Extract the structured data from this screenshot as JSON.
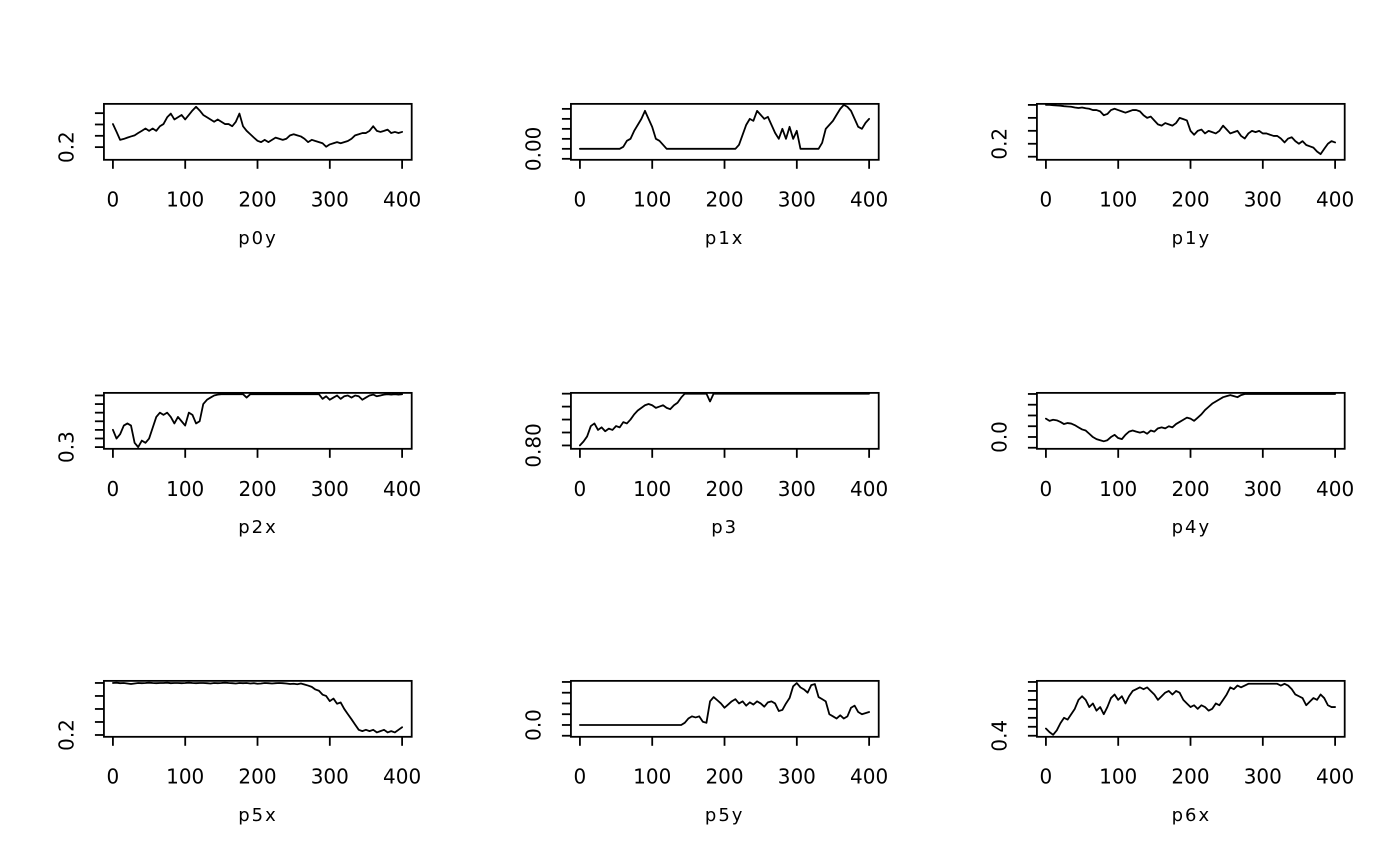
{
  "page": {
    "background": "#ffffff",
    "foreground": "#000000"
  },
  "layout": {
    "rows": 3,
    "cols": 3,
    "grid": false,
    "legend": "none"
  },
  "chart_data": [
    {
      "type": "line",
      "title": "p0y",
      "line_color": "#000000",
      "x_start": 0,
      "x_step": 5,
      "xlim": [
        0,
        400
      ],
      "x_ticks": [
        0,
        100,
        200,
        300,
        400
      ],
      "y_ticks": [
        0.2,
        0.25,
        0.3,
        0.35
      ],
      "y_axis_label": "0.2",
      "y_label_tick_index": 0,
      "ylim": [
        0.144,
        0.391
      ],
      "values": [
        0.302,
        0.268,
        0.232,
        0.236,
        0.242,
        0.247,
        0.252,
        0.262,
        0.272,
        0.282,
        0.272,
        0.282,
        0.272,
        0.292,
        0.302,
        0.332,
        0.348,
        0.322,
        0.332,
        0.342,
        0.322,
        0.342,
        0.362,
        0.378,
        0.362,
        0.342,
        0.332,
        0.322,
        0.312,
        0.322,
        0.312,
        0.302,
        0.302,
        0.292,
        0.312,
        0.348,
        0.292,
        0.272,
        0.257,
        0.242,
        0.228,
        0.222,
        0.232,
        0.222,
        0.232,
        0.242,
        0.237,
        0.232,
        0.237,
        0.252,
        0.257,
        0.252,
        0.247,
        0.237,
        0.222,
        0.232,
        0.227,
        0.222,
        0.217,
        0.202,
        0.212,
        0.217,
        0.222,
        0.217,
        0.222,
        0.227,
        0.237,
        0.252,
        0.257,
        0.262,
        0.262,
        0.272,
        0.292,
        0.272,
        0.267,
        0.272,
        0.277,
        0.262,
        0.267,
        0.262,
        0.267
      ]
    },
    {
      "type": "line",
      "title": "p1x",
      "line_color": "#000000",
      "x_start": 0,
      "x_step": 5,
      "xlim": [
        0,
        400
      ],
      "x_ticks": [
        0,
        100,
        200,
        300,
        400
      ],
      "y_ticks": [
        -0.05,
        0.0,
        0.05,
        0.1,
        0.15,
        0.2
      ],
      "y_axis_label": "0.00",
      "y_label_tick_index": 1,
      "ylim": [
        -0.055,
        0.225
      ],
      "values": [
        0,
        0,
        0,
        0,
        0,
        0,
        0,
        0,
        0,
        0,
        0,
        0,
        0.01,
        0.04,
        0.05,
        0.09,
        0.12,
        0.15,
        0.19,
        0.15,
        0.11,
        0.05,
        0.04,
        0.02,
        0,
        0,
        0,
        0,
        0,
        0,
        0,
        0,
        0,
        0,
        0,
        0,
        0,
        0,
        0,
        0,
        0,
        0,
        0,
        0,
        0.02,
        0.07,
        0.12,
        0.15,
        0.14,
        0.19,
        0.17,
        0.15,
        0.16,
        0.12,
        0.08,
        0.05,
        0.1,
        0.05,
        0.11,
        0.05,
        0.09,
        0,
        0,
        0,
        0,
        0,
        0,
        0.03,
        0.1,
        0.12,
        0.14,
        0.17,
        0.2,
        0.22,
        0.21,
        0.19,
        0.15,
        0.11,
        0.1,
        0.13,
        0.15
      ]
    },
    {
      "type": "line",
      "title": "p1y",
      "line_color": "#000000",
      "x_start": 0,
      "x_step": 5,
      "xlim": [
        0,
        400
      ],
      "x_ticks": [
        0,
        100,
        200,
        300,
        400
      ],
      "y_ticks": [
        0.15,
        0.2,
        0.25,
        0.3,
        0.35
      ],
      "y_axis_label": "0.2",
      "y_label_tick_index": 1,
      "ylim": [
        0.138,
        0.354
      ],
      "values": [
        0.35,
        0.35,
        0.349,
        0.348,
        0.347,
        0.345,
        0.344,
        0.343,
        0.34,
        0.338,
        0.34,
        0.337,
        0.335,
        0.33,
        0.33,
        0.325,
        0.31,
        0.315,
        0.33,
        0.335,
        0.33,
        0.325,
        0.32,
        0.325,
        0.33,
        0.33,
        0.325,
        0.31,
        0.3,
        0.305,
        0.29,
        0.275,
        0.27,
        0.28,
        0.275,
        0.27,
        0.28,
        0.3,
        0.295,
        0.29,
        0.25,
        0.235,
        0.25,
        0.255,
        0.24,
        0.25,
        0.245,
        0.24,
        0.25,
        0.27,
        0.255,
        0.24,
        0.245,
        0.25,
        0.23,
        0.22,
        0.24,
        0.25,
        0.245,
        0.25,
        0.24,
        0.24,
        0.235,
        0.23,
        0.23,
        0.22,
        0.205,
        0.22,
        0.225,
        0.21,
        0.2,
        0.21,
        0.195,
        0.19,
        0.185,
        0.17,
        0.16,
        0.18,
        0.2,
        0.21,
        0.205
      ]
    },
    {
      "type": "line",
      "title": "p2x",
      "line_color": "#000000",
      "x_start": 0,
      "x_step": 5,
      "xlim": [
        0,
        400
      ],
      "x_ticks": [
        0,
        100,
        200,
        300,
        400
      ],
      "y_ticks": [
        0.3,
        0.32,
        0.34,
        0.36,
        0.38,
        0.4,
        0.42
      ],
      "y_axis_label": "0.3",
      "y_label_tick_index": 0,
      "ylim": [
        0.296,
        0.426
      ],
      "values": [
        0.34,
        0.32,
        0.33,
        0.35,
        0.355,
        0.35,
        0.31,
        0.3,
        0.315,
        0.31,
        0.32,
        0.345,
        0.37,
        0.38,
        0.375,
        0.38,
        0.37,
        0.355,
        0.37,
        0.36,
        0.35,
        0.38,
        0.375,
        0.355,
        0.36,
        0.4,
        0.41,
        0.415,
        0.42,
        0.422,
        0.423,
        0.423,
        0.423,
        0.423,
        0.423,
        0.423,
        0.423,
        0.415,
        0.423,
        0.423,
        0.423,
        0.423,
        0.423,
        0.423,
        0.423,
        0.423,
        0.423,
        0.423,
        0.423,
        0.423,
        0.423,
        0.423,
        0.423,
        0.423,
        0.423,
        0.423,
        0.423,
        0.423,
        0.412,
        0.418,
        0.41,
        0.415,
        0.42,
        0.412,
        0.418,
        0.42,
        0.415,
        0.42,
        0.418,
        0.41,
        0.415,
        0.42,
        0.422,
        0.418,
        0.42,
        0.422,
        0.423,
        0.422,
        0.423,
        0.422,
        0.423
      ]
    },
    {
      "type": "line",
      "title": "p3",
      "line_color": "#000000",
      "x_start": 0,
      "x_step": 5,
      "xlim": [
        0,
        400
      ],
      "x_ticks": [
        0,
        100,
        200,
        300,
        400
      ],
      "y_ticks": [
        0.8,
        0.85,
        0.9,
        0.95,
        1.0
      ],
      "y_axis_label": "0.80",
      "y_label_tick_index": 0,
      "ylim": [
        0.787,
        1.003
      ],
      "values": [
        0.8,
        0.815,
        0.835,
        0.875,
        0.885,
        0.86,
        0.87,
        0.855,
        0.865,
        0.86,
        0.875,
        0.87,
        0.89,
        0.885,
        0.9,
        0.92,
        0.935,
        0.945,
        0.955,
        0.96,
        0.955,
        0.945,
        0.95,
        0.955,
        0.945,
        0.94,
        0.955,
        0.965,
        0.985,
        1.0,
        1.0,
        1.0,
        1.0,
        1.0,
        1.0,
        1.0,
        0.97,
        1.0,
        1.0,
        1.0,
        1.0,
        1.0,
        1.0,
        1.0,
        1.0,
        1.0,
        1.0,
        1.0,
        1.0,
        1.0,
        1.0,
        1.0,
        1.0,
        1.0,
        1.0,
        1.0,
        1.0,
        1.0,
        1.0,
        1.0,
        1.0,
        1.0,
        1.0,
        1.0,
        1.0,
        1.0,
        1.0,
        1.0,
        1.0,
        1.0,
        1.0,
        1.0,
        1.0,
        1.0,
        1.0,
        1.0,
        1.0,
        1.0,
        1.0,
        1.0,
        1.0
      ]
    },
    {
      "type": "line",
      "title": "p4y",
      "line_color": "#000000",
      "x_start": 0,
      "x_step": 5,
      "xlim": [
        0,
        400
      ],
      "x_ticks": [
        0,
        100,
        200,
        300,
        400
      ],
      "y_ticks": [
        -0.1,
        0.0,
        0.1,
        0.2,
        0.3,
        0.4
      ],
      "y_axis_label": "0.0",
      "y_label_tick_index": 1,
      "ylim": [
        -0.11,
        0.41
      ],
      "values": [
        0.17,
        0.15,
        0.16,
        0.155,
        0.14,
        0.12,
        0.13,
        0.125,
        0.11,
        0.09,
        0.07,
        0.06,
        0.03,
        0.0,
        -0.02,
        -0.03,
        -0.04,
        -0.03,
        0.0,
        0.02,
        -0.01,
        -0.02,
        0.02,
        0.05,
        0.06,
        0.05,
        0.04,
        0.05,
        0.03,
        0.06,
        0.05,
        0.08,
        0.09,
        0.08,
        0.1,
        0.09,
        0.12,
        0.14,
        0.16,
        0.18,
        0.17,
        0.15,
        0.18,
        0.21,
        0.25,
        0.28,
        0.31,
        0.33,
        0.35,
        0.37,
        0.38,
        0.39,
        0.38,
        0.37,
        0.39,
        0.4,
        0.4,
        0.4,
        0.4,
        0.4,
        0.4,
        0.4,
        0.4,
        0.4,
        0.4,
        0.4,
        0.4,
        0.4,
        0.4,
        0.4,
        0.4,
        0.4,
        0.4,
        0.4,
        0.4,
        0.4,
        0.4,
        0.4,
        0.4,
        0.4,
        0.4
      ]
    },
    {
      "type": "line",
      "title": "p5x",
      "line_color": "#000000",
      "x_start": 0,
      "x_step": 5,
      "xlim": [
        0,
        400
      ],
      "x_ticks": [
        0,
        100,
        200,
        300,
        400
      ],
      "y_ticks": [
        0.2,
        0.25,
        0.3,
        0.35,
        0.4
      ],
      "y_axis_label": "0.2",
      "y_label_tick_index": 0,
      "ylim": [
        0.193,
        0.408
      ],
      "values": [
        0.4,
        0.401,
        0.399,
        0.4,
        0.398,
        0.396,
        0.398,
        0.4,
        0.399,
        0.4,
        0.401,
        0.4,
        0.399,
        0.4,
        0.4,
        0.401,
        0.399,
        0.4,
        0.4,
        0.399,
        0.4,
        0.401,
        0.4,
        0.399,
        0.4,
        0.4,
        0.399,
        0.398,
        0.4,
        0.399,
        0.4,
        0.401,
        0.4,
        0.399,
        0.398,
        0.4,
        0.399,
        0.4,
        0.398,
        0.399,
        0.397,
        0.398,
        0.4,
        0.399,
        0.398,
        0.399,
        0.4,
        0.399,
        0.398,
        0.396,
        0.397,
        0.395,
        0.398,
        0.394,
        0.39,
        0.385,
        0.375,
        0.37,
        0.355,
        0.35,
        0.33,
        0.34,
        0.32,
        0.325,
        0.3,
        0.28,
        0.26,
        0.24,
        0.22,
        0.215,
        0.22,
        0.215,
        0.22,
        0.21,
        0.215,
        0.22,
        0.21,
        0.215,
        0.21,
        0.22,
        0.23
      ]
    },
    {
      "type": "line",
      "title": "p5y",
      "line_color": "#000000",
      "x_start": 0,
      "x_step": 5,
      "xlim": [
        0,
        400
      ],
      "x_ticks": [
        0,
        100,
        200,
        300,
        400
      ],
      "y_ticks": [
        -0.1,
        0.0,
        0.1,
        0.2,
        0.3,
        0.4
      ],
      "y_axis_label": "0.0",
      "y_label_tick_index": 1,
      "ylim": [
        -0.11,
        0.41
      ],
      "values": [
        0,
        0,
        0,
        0,
        0,
        0,
        0,
        0,
        0,
        0,
        0,
        0,
        0,
        0,
        0,
        0,
        0,
        0,
        0,
        0,
        0,
        0,
        0,
        0,
        0,
        0,
        0,
        0,
        0,
        0.02,
        0.06,
        0.08,
        0.07,
        0.08,
        0.03,
        0.02,
        0.22,
        0.26,
        0.23,
        0.2,
        0.16,
        0.19,
        0.22,
        0.24,
        0.2,
        0.22,
        0.18,
        0.21,
        0.19,
        0.22,
        0.2,
        0.17,
        0.21,
        0.22,
        0.2,
        0.13,
        0.14,
        0.2,
        0.25,
        0.36,
        0.39,
        0.35,
        0.33,
        0.3,
        0.37,
        0.38,
        0.26,
        0.24,
        0.22,
        0.1,
        0.08,
        0.06,
        0.09,
        0.06,
        0.08,
        0.16,
        0.18,
        0.12,
        0.1,
        0.11,
        0.12
      ]
    },
    {
      "type": "line",
      "title": "p6x",
      "line_color": "#000000",
      "x_start": 0,
      "x_step": 5,
      "xlim": [
        0,
        400
      ],
      "x_ticks": [
        0,
        100,
        200,
        300,
        400
      ],
      "y_ticks": [
        0.4,
        0.45,
        0.5,
        0.55,
        0.6,
        0.65,
        0.7
      ],
      "y_axis_label": "0.4",
      "y_label_tick_index": 0,
      "ylim": [
        0.394,
        0.706
      ],
      "values": [
        0.44,
        0.42,
        0.405,
        0.43,
        0.47,
        0.5,
        0.49,
        0.52,
        0.55,
        0.6,
        0.62,
        0.6,
        0.56,
        0.58,
        0.54,
        0.56,
        0.52,
        0.56,
        0.61,
        0.63,
        0.6,
        0.62,
        0.58,
        0.62,
        0.65,
        0.66,
        0.67,
        0.66,
        0.67,
        0.65,
        0.63,
        0.6,
        0.62,
        0.64,
        0.65,
        0.63,
        0.65,
        0.64,
        0.6,
        0.58,
        0.56,
        0.57,
        0.55,
        0.57,
        0.56,
        0.54,
        0.55,
        0.58,
        0.57,
        0.6,
        0.63,
        0.67,
        0.66,
        0.68,
        0.67,
        0.68,
        0.69,
        0.69,
        0.69,
        0.69,
        0.69,
        0.69,
        0.69,
        0.69,
        0.69,
        0.68,
        0.69,
        0.68,
        0.66,
        0.63,
        0.62,
        0.61,
        0.57,
        0.59,
        0.61,
        0.6,
        0.63,
        0.61,
        0.57,
        0.56,
        0.56
      ]
    }
  ]
}
